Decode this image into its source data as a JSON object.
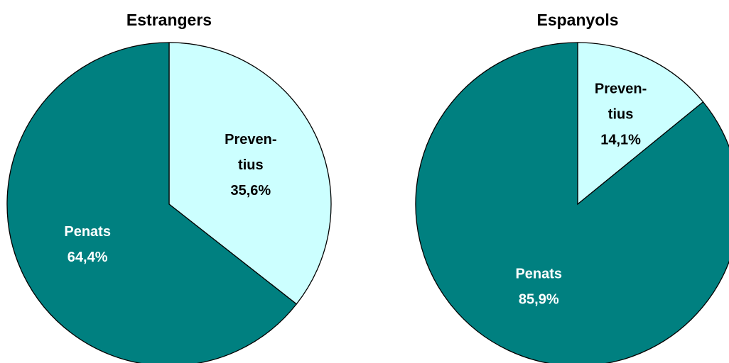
{
  "chart_data": [
    {
      "type": "pie",
      "title": "Estrangers",
      "slices": [
        {
          "label_lines": [
            "Preven-",
            "tius"
          ],
          "value": 35.6,
          "value_text": "35,6%",
          "color": "#ccffff",
          "text_color": "#000000"
        },
        {
          "label_lines": [
            "Penats"
          ],
          "value": 64.4,
          "value_text": "64,4%",
          "color": "#008080",
          "text_color": "#ffffff"
        }
      ]
    },
    {
      "type": "pie",
      "title": "Espanyols",
      "slices": [
        {
          "label_lines": [
            "Preven-",
            "tius"
          ],
          "value": 14.1,
          "value_text": "14,1%",
          "color": "#ccffff",
          "text_color": "#000000"
        },
        {
          "label_lines": [
            "Penats"
          ],
          "value": 85.9,
          "value_text": "85,9%",
          "color": "#008080",
          "text_color": "#ffffff"
        }
      ]
    }
  ]
}
